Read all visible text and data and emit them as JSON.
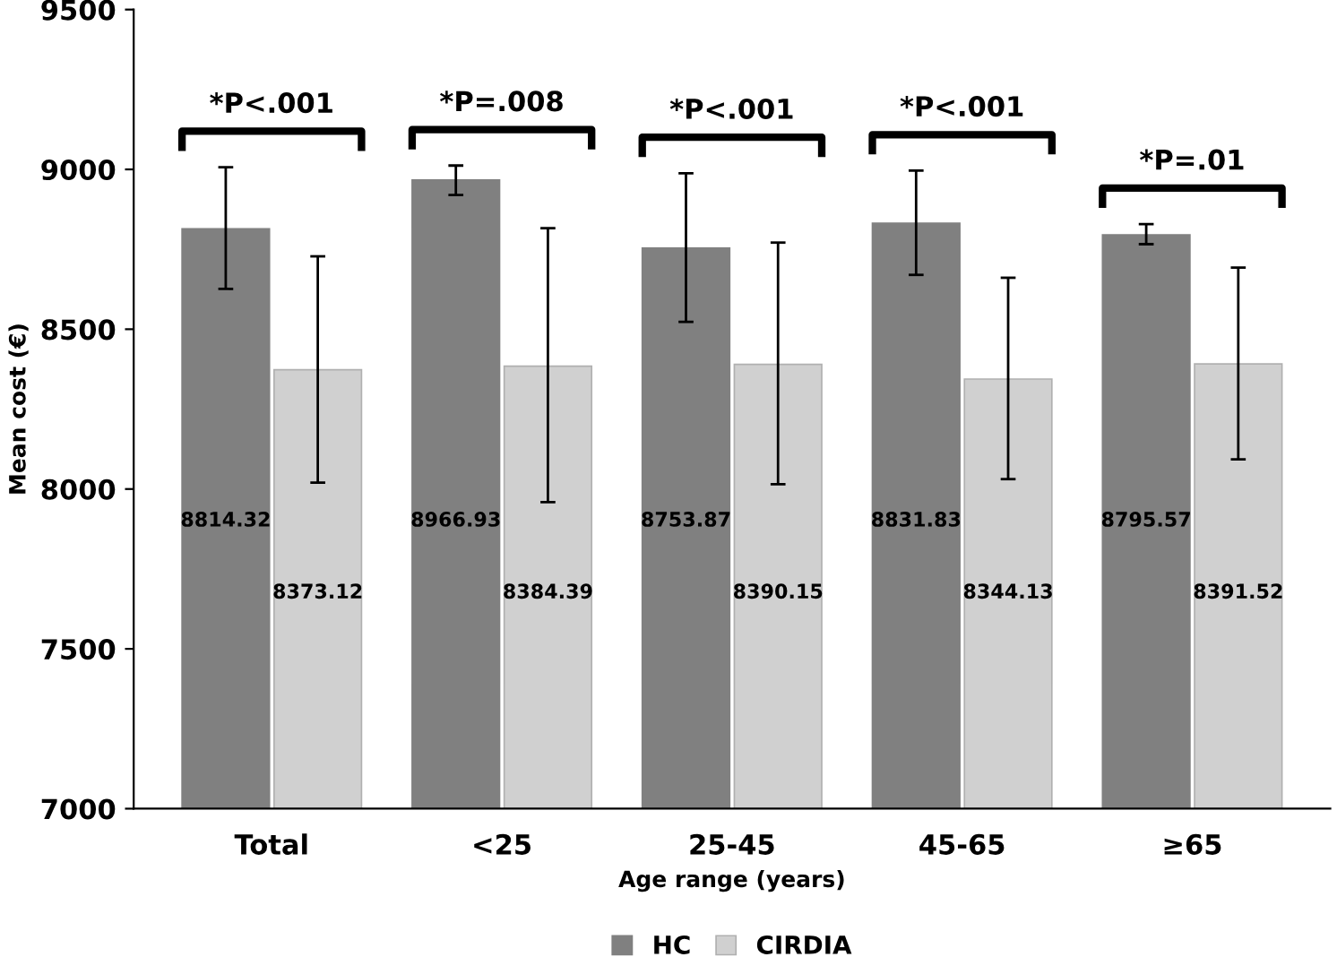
{
  "chart_data": {
    "type": "bar",
    "xlabel": "Age range (years)",
    "ylabel": "Mean cost (€)",
    "categories": [
      "Total",
      "<25",
      "25-45",
      "45-65",
      "≥65"
    ],
    "series": [
      {
        "name": "HC",
        "color": "#808080",
        "values": [
          8814.32,
          8966.93,
          8753.87,
          8831.83,
          8795.57
        ],
        "errors": [
          [
            8626,
            9007
          ],
          [
            8920,
            9012
          ],
          [
            8523,
            8988
          ],
          [
            8670,
            8996
          ],
          [
            8766,
            8829
          ]
        ]
      },
      {
        "name": "CIRDIA",
        "color": "#d0d0d0",
        "values": [
          8373.12,
          8384.39,
          8390.15,
          8344.13,
          8391.52
        ],
        "errors": [
          [
            8020,
            8728
          ],
          [
            7959,
            8816
          ],
          [
            8015,
            8771
          ],
          [
            8031,
            8661
          ],
          [
            8093,
            8693
          ]
        ]
      }
    ],
    "ylim": [
      7000,
      9500
    ],
    "yticks": [
      7000,
      7500,
      8000,
      8500,
      9000,
      9500
    ],
    "data_labels": true,
    "grid": false,
    "legend": "bottom",
    "annotations": [
      "*P<.001",
      "*P=.008",
      "*P<.001",
      "*P<.001",
      "*P=.01"
    ]
  }
}
